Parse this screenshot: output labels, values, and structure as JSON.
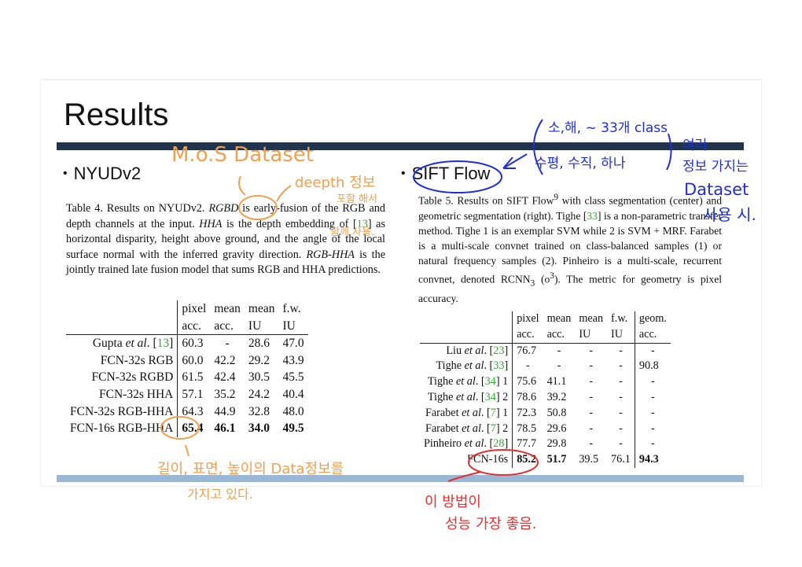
{
  "slide": {
    "title": "Results",
    "left_heading": "NYUDv2",
    "right_heading": "SIFT Flow"
  },
  "table4": {
    "caption_parts": {
      "p1": "Table 4.   Results on NYUDv2. ",
      "rgbd": "RGBD",
      "p2": " is early-fusion of the RGB and depth channels at the input. ",
      "hha": "HHA",
      "p3": " is the depth embedding of [",
      "ref": "13",
      "p4": "] as horizontal disparity, height above ground, and the angle of the local surface normal with the inferred gravity direction. ",
      "rgbhha": "RGB-HHA",
      "p5": " is the jointly trained late fusion model that sums RGB and HHA predictions."
    },
    "header_top": [
      "",
      "pixel",
      "mean",
      "mean",
      "f.w."
    ],
    "header_bottom": [
      "",
      "acc.",
      "acc.",
      "IU",
      "IU"
    ],
    "rows": [
      {
        "name_pre": "Gupta ",
        "name_em": "et al",
        "name_post": ". [",
        "ref": "13",
        "name_end": "]",
        "v": [
          "60.3",
          "-",
          "28.6",
          "47.0"
        ]
      },
      {
        "name": "FCN-32s RGB",
        "v": [
          "60.0",
          "42.2",
          "29.2",
          "43.9"
        ]
      },
      {
        "name": "FCN-32s RGBD",
        "v": [
          "61.5",
          "42.4",
          "30.5",
          "45.5"
        ]
      },
      {
        "name": "FCN-32s HHA",
        "v": [
          "57.1",
          "35.2",
          "24.2",
          "40.4"
        ]
      },
      {
        "name": "FCN-32s RGB-HHA",
        "v": [
          "64.3",
          "44.9",
          "32.8",
          "48.0"
        ]
      },
      {
        "name": "FCN-16s RGB-HHA",
        "v": [
          "65.4",
          "46.1",
          "34.0",
          "49.5"
        ]
      }
    ]
  },
  "table5": {
    "caption_parts": {
      "p1": "Table 5.   Results on SIFT Flow",
      "sup": "9",
      "p2": " with class segmentation (center) and geometric segmentation (right).  Tighe [",
      "ref1": "33",
      "p3": "] is a non-parametric transfer method.  Tighe 1 is an exemplar SVM while 2 is SVM + MRF. Farabet is a multi-scale convnet trained on class-balanced samples (1) or natural frequency samples (2).  Pinheiro is a multi-scale, recurrent convnet, denoted RCNN",
      "sub": "3",
      "p4": " (o",
      "sup2": "3",
      "p5": "). The metric for geometry is pixel accuracy."
    },
    "header_top": [
      "",
      "pixel",
      "mean",
      "mean",
      "f.w.",
      "geom."
    ],
    "header_bottom": [
      "",
      "acc.",
      "acc.",
      "IU",
      "IU",
      "acc."
    ],
    "rows": [
      {
        "author": "Liu",
        "ref": "23",
        "suffix": "",
        "v": [
          "76.7",
          "-",
          "-",
          "-",
          "-"
        ]
      },
      {
        "author": "Tighe",
        "ref": "33",
        "suffix": "",
        "v": [
          "-",
          "-",
          "-",
          "-",
          "90.8"
        ]
      },
      {
        "author": "Tighe",
        "ref": "34",
        "suffix": " 1",
        "v": [
          "75.6",
          "41.1",
          "-",
          "-",
          "-"
        ]
      },
      {
        "author": "Tighe",
        "ref": "34",
        "suffix": " 2",
        "v": [
          "78.6",
          "39.2",
          "-",
          "-",
          "-"
        ]
      },
      {
        "author": "Farabet",
        "ref": "7",
        "suffix": " 1",
        "v": [
          "72.3",
          "50.8",
          "-",
          "-",
          "-"
        ]
      },
      {
        "author": "Farabet",
        "ref": "7",
        "suffix": " 2",
        "v": [
          "78.5",
          "29.6",
          "-",
          "-",
          "-"
        ]
      },
      {
        "author": "Pinheiro",
        "ref": "28",
        "suffix": "",
        "v": [
          "77.7",
          "29.8",
          "-",
          "-",
          "-"
        ]
      }
    ],
    "last_row": {
      "name": "FCN-16s",
      "v": [
        "85.2",
        "51.7",
        "39.5",
        "76.1",
        "94.3"
      ]
    }
  },
  "annotations": {
    "orange_dataset": "M.o.S Dataset",
    "orange_depth": "deepth 정보",
    "orange_depth2": "포함 해서",
    "orange_depth3": "함께 사용.",
    "orange_bottom1": "길이, 표면, 높이의 Data정보를",
    "orange_bottom2": "가지고 있다.",
    "blue_top": "소,해, ~ 33개 class",
    "blue_mid": "수평, 수직, 하나",
    "blue_right1": "여러",
    "blue_right2": "정보 가지는",
    "blue_right3": "Dataset",
    "blue_right4": "사용 시.",
    "red_1": "이 방법이",
    "red_2": "성능 가장 좋음.",
    "colors": {
      "orange": "#f0a050",
      "blue": "#1f2fd6",
      "red": "#e23030"
    }
  }
}
